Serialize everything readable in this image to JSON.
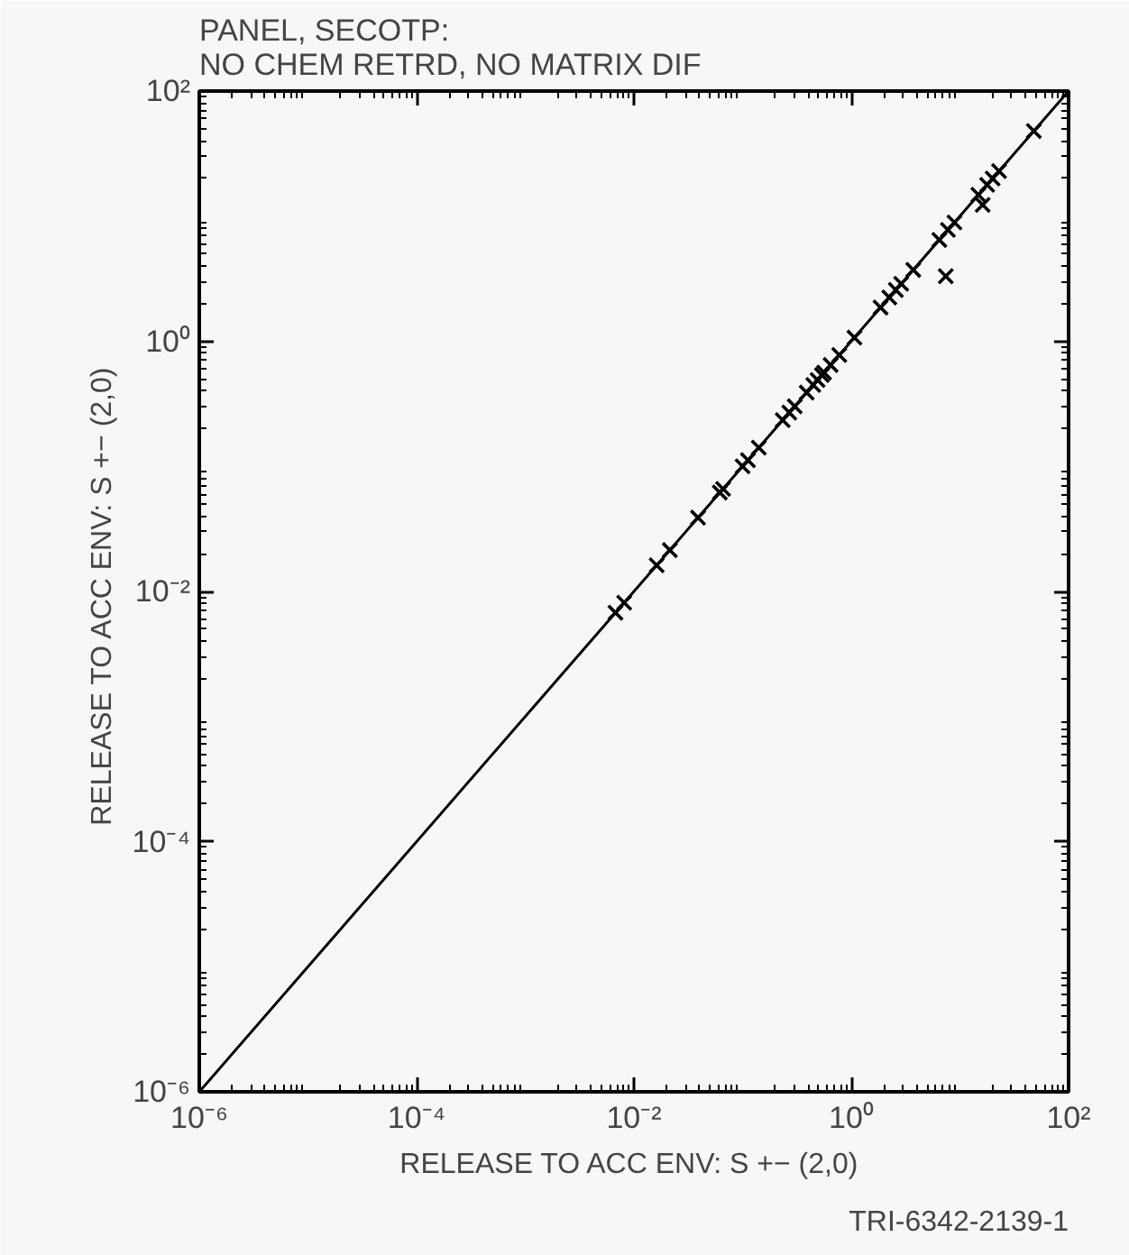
{
  "chart_data": {
    "type": "scatter",
    "title": "PANEL, SECOTP:\nNO CHEM RETRD, NO MATRIX DIF",
    "xlabel": "RELEASE TO ACC ENV:  S +− (2,0)",
    "ylabel": "RELEASE TO ACC ENV:  S +− (2,0)",
    "annotations": [
      "TRI-6342-2139-1"
    ],
    "log": "xy",
    "grid": false,
    "xlim": [
      1e-06,
      100
    ],
    "ylim": [
      1e-06,
      100
    ],
    "xticks": [
      {
        "value": 1e-06,
        "label": "10⁻⁶"
      },
      {
        "value": 0.0001,
        "label": "10⁻⁴"
      },
      {
        "value": 0.01,
        "label": "10⁻²"
      },
      {
        "value": 1,
        "label": "10⁰"
      },
      {
        "value": 100,
        "label": "10²"
      }
    ],
    "yticks": [
      {
        "value": 1e-06,
        "label": "10⁻⁶"
      },
      {
        "value": 0.0001,
        "label": "10⁻⁴"
      },
      {
        "value": 0.01,
        "label": "10⁻²"
      },
      {
        "value": 1,
        "label": "10⁰"
      },
      {
        "value": 100,
        "label": "10²"
      }
    ],
    "series": [
      {
        "marker": "cross",
        "color": "#000000",
        "x": [
          0.00676,
          0.00813,
          0.0162,
          0.0214,
          0.0389,
          0.0617,
          0.0661,
          0.1,
          0.112,
          0.141,
          0.234,
          0.269,
          0.302,
          0.389,
          0.447,
          0.49,
          0.537,
          0.562,
          0.646,
          0.776,
          1.07,
          1.86,
          2.24,
          2.57,
          2.88,
          3.72,
          6.46,
          7.76,
          8.91,
          14.8,
          17.8,
          20.0,
          22.9,
          47.9,
          7.41,
          16.2
        ],
        "values": [
          0.00676,
          0.00813,
          0.0162,
          0.0214,
          0.0389,
          0.0617,
          0.0661,
          0.1,
          0.112,
          0.141,
          0.234,
          0.269,
          0.302,
          0.389,
          0.447,
          0.49,
          0.537,
          0.562,
          0.646,
          0.776,
          1.07,
          1.86,
          2.24,
          2.57,
          2.88,
          3.72,
          6.46,
          7.76,
          8.91,
          14.8,
          17.8,
          20.0,
          22.9,
          47.9,
          3.31,
          12.3
        ]
      },
      {
        "type": "line",
        "marker": "none",
        "line_style": "solid",
        "color": "#000000",
        "x": [
          1e-06,
          100
        ],
        "values": [
          1e-06,
          100
        ]
      }
    ]
  }
}
